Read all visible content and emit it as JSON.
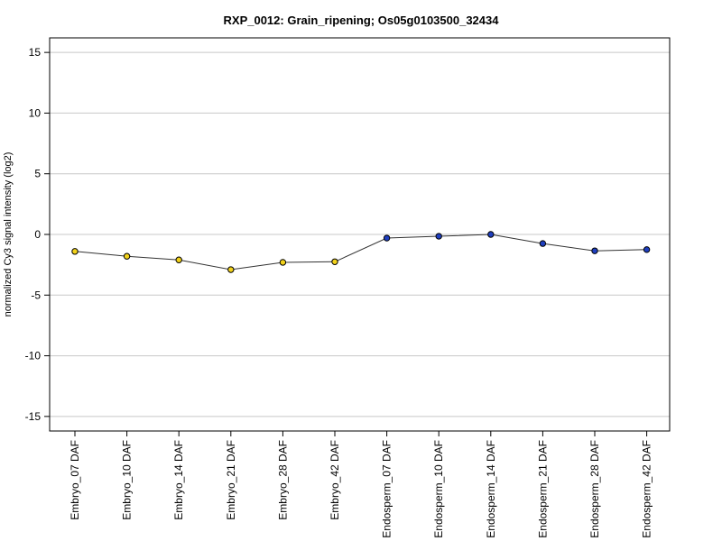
{
  "chart_data": {
    "type": "line",
    "title": "RXP_0012: Grain_ripening; Os05g0103500_32434",
    "xlabel": "",
    "ylabel": "normalized Cy3 signal intensity (log2)",
    "ylim": [
      -16.2,
      16.2
    ],
    "yticks": [
      15,
      10,
      5,
      0,
      -5,
      -10,
      -15
    ],
    "grid": true,
    "categories": [
      "Embryo_07 DAF",
      "Embryo_10 DAF",
      "Embryo_14 DAF",
      "Embryo_21 DAF",
      "Embryo_28 DAF",
      "Embryo_42 DAF",
      "Endosperm_07 DAF",
      "Endosperm_10 DAF",
      "Endosperm_14 DAF",
      "Endosperm_21 DAF",
      "Endosperm_28 DAF",
      "Endosperm_42 DAF"
    ],
    "values": [
      -1.4,
      -1.8,
      -2.1,
      -2.9,
      -2.3,
      -2.25,
      -0.3,
      -0.15,
      0.0,
      -0.75,
      -1.35,
      -1.25
    ],
    "point_colors": [
      "#f2d21b",
      "#f2d21b",
      "#f2d21b",
      "#f2d21b",
      "#f2d21b",
      "#f2d21b",
      "#1f3fbf",
      "#1f3fbf",
      "#1f3fbf",
      "#1f3fbf",
      "#1f3fbf",
      "#1f3fbf"
    ],
    "colors": {
      "line": "#333333",
      "grid": "#c8c8c8",
      "frame": "#000000",
      "point_stroke": "#000000"
    }
  }
}
